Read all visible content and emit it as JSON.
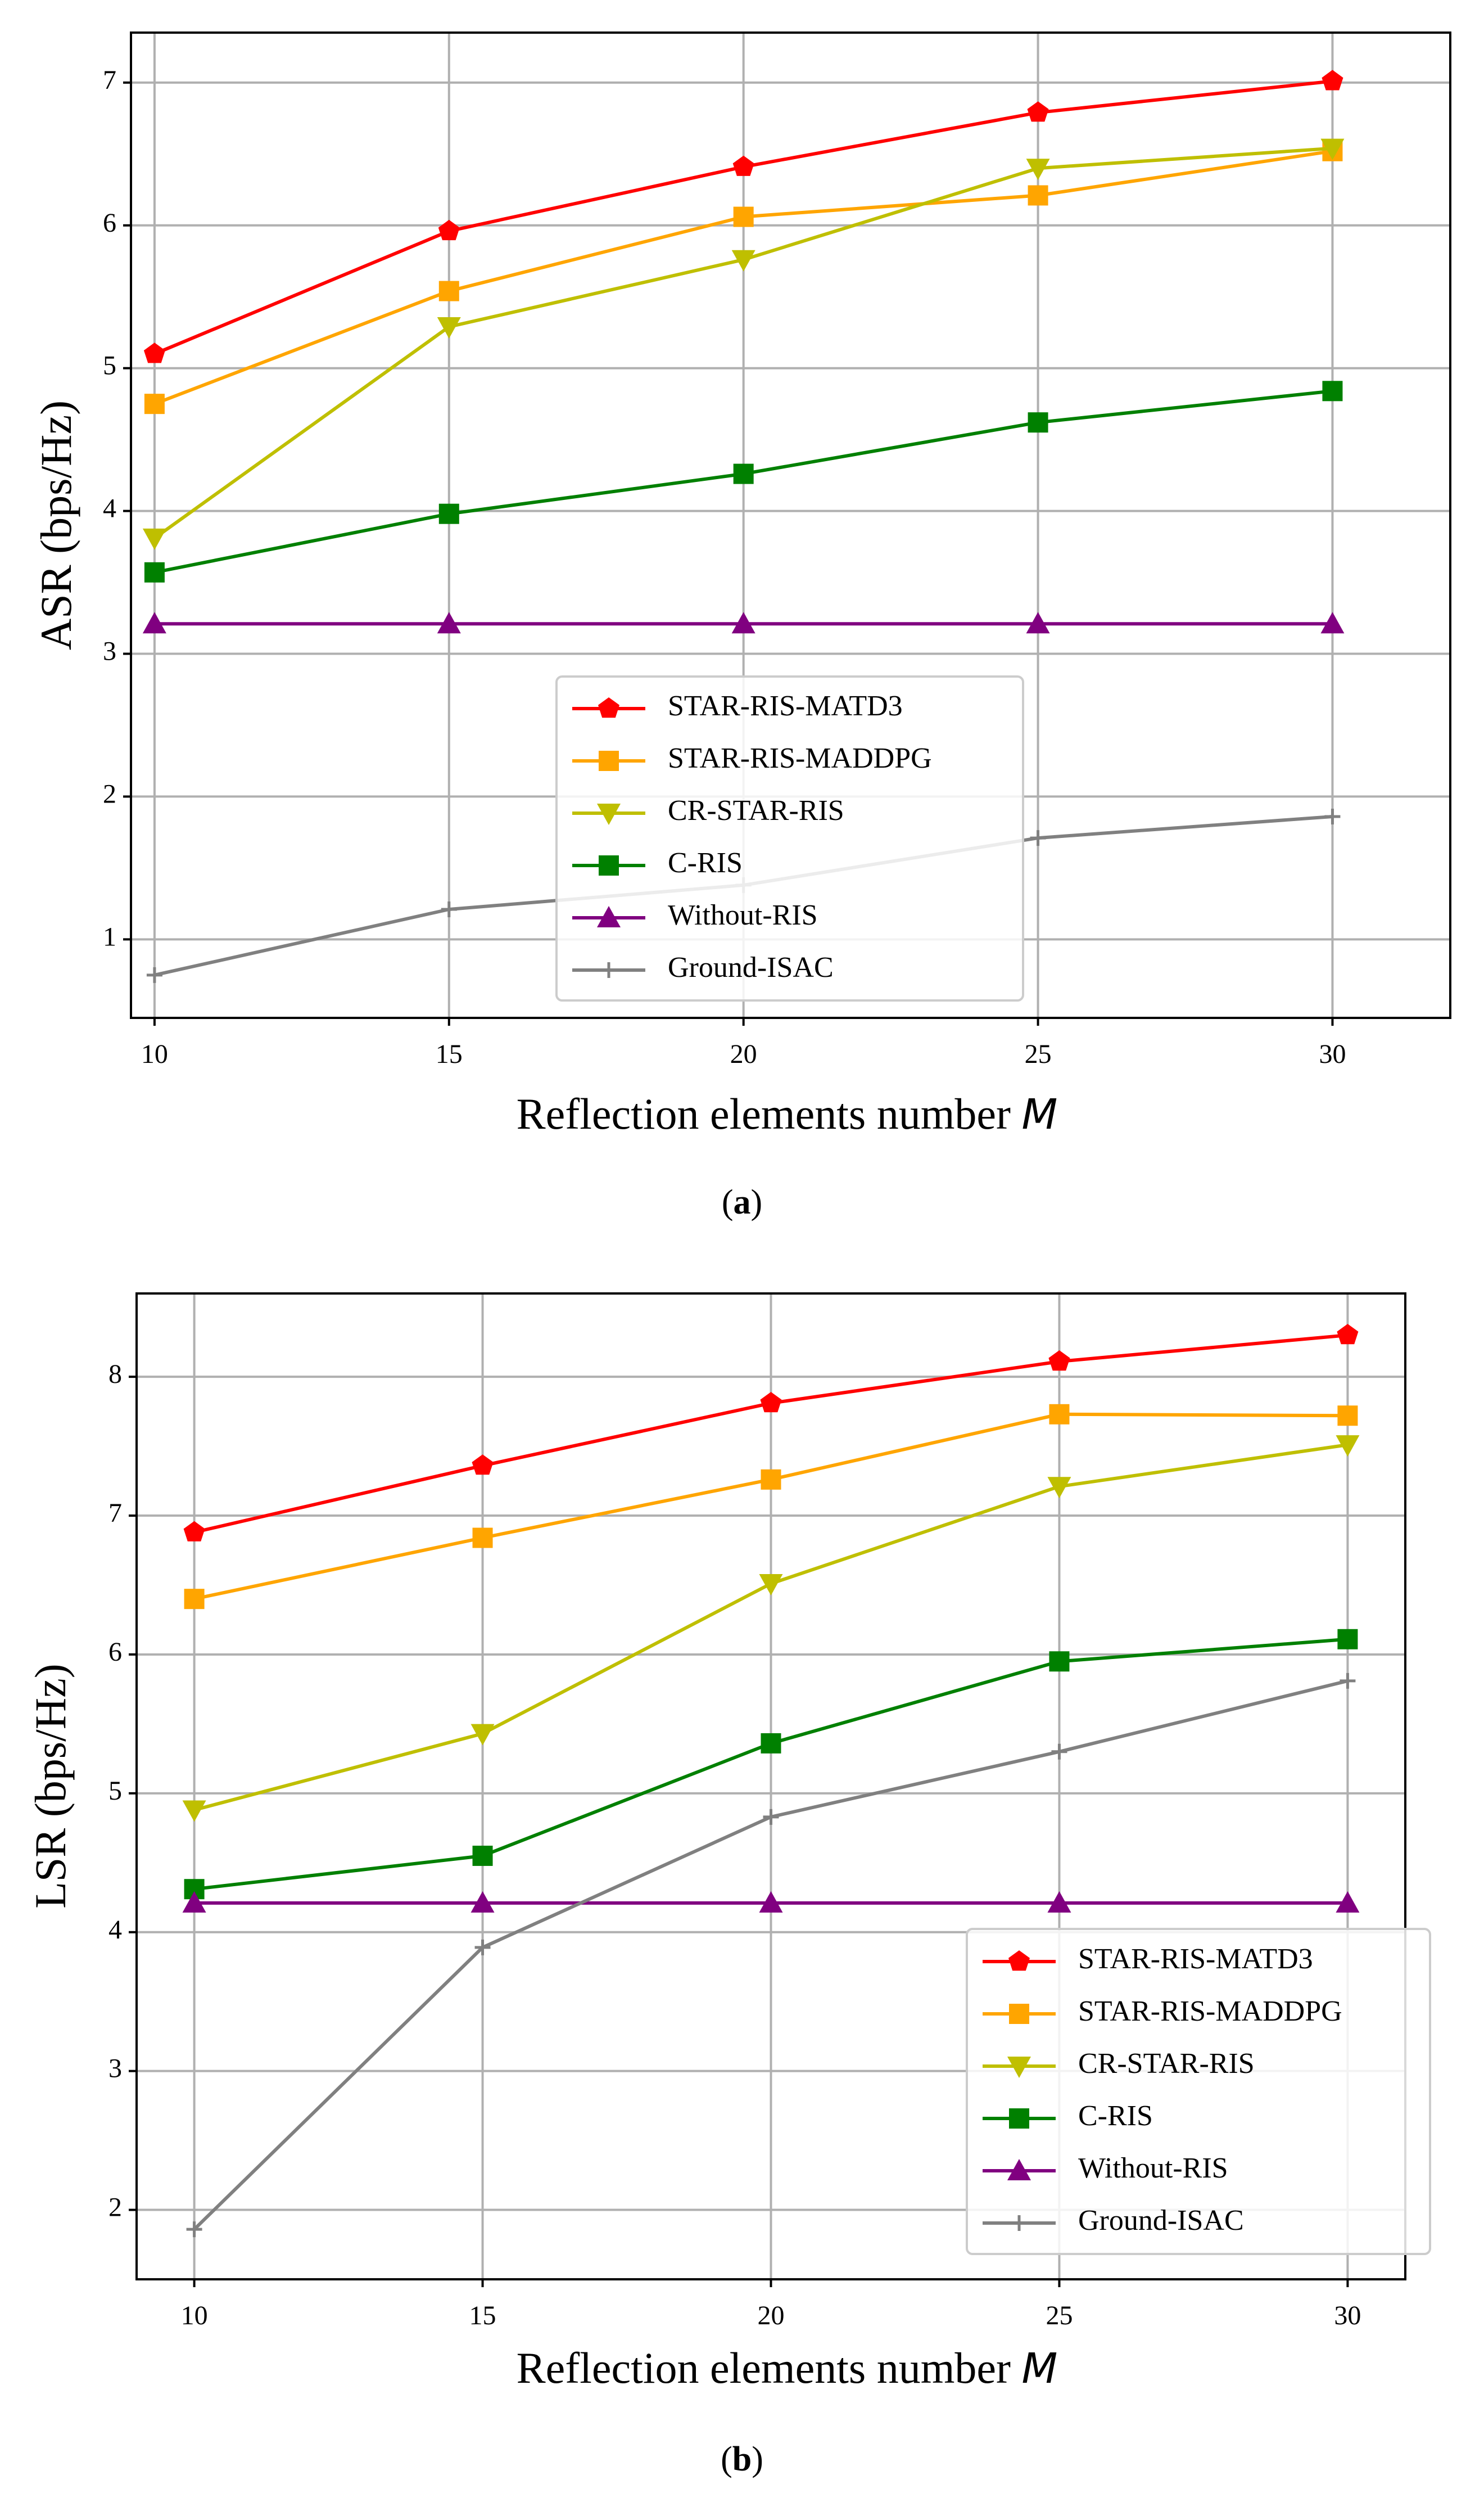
{
  "chart_data": [
    {
      "type": "line",
      "panel": "a",
      "caption_open": "(",
      "caption_letter": "a",
      "caption_close": ")",
      "xlabel": "Reflection elements number ",
      "xvar": "M",
      "ylabel": "ASR (bps/Hz)",
      "x": [
        10,
        15,
        20,
        25,
        30
      ],
      "xticks": [
        10,
        15,
        20,
        25,
        30
      ],
      "yticks": [
        1,
        2,
        3,
        4,
        5,
        6,
        7
      ],
      "xlim": [
        9.6,
        32.0
      ],
      "ylim": [
        0.45,
        7.35
      ],
      "grid": true,
      "legend_position": "lower-center",
      "series": [
        {
          "name": "STAR-RIS-MATD3",
          "color": "#ff0000",
          "marker": "pentagon",
          "values": [
            5.1,
            5.96,
            6.41,
            6.79,
            7.01
          ]
        },
        {
          "name": "STAR-RIS-MADDPG",
          "color": "#ffa500",
          "marker": "square",
          "values": [
            4.75,
            5.54,
            6.06,
            6.21,
            6.52
          ]
        },
        {
          "name": "CR-STAR-RIS",
          "color": "#bfbf00",
          "marker": "triangle-down",
          "values": [
            3.81,
            5.29,
            5.76,
            6.4,
            6.54
          ]
        },
        {
          "name": "C-RIS",
          "color": "#008000",
          "marker": "square",
          "values": [
            3.57,
            3.98,
            4.26,
            4.62,
            4.84
          ]
        },
        {
          "name": "Without-RIS",
          "color": "#800080",
          "marker": "triangle-up",
          "values": [
            3.21,
            3.21,
            3.21,
            3.21,
            3.21
          ]
        },
        {
          "name": "Ground-ISAC",
          "color": "#808080",
          "marker": "plus",
          "values": [
            0.75,
            1.21,
            1.38,
            1.71,
            1.86
          ]
        }
      ]
    },
    {
      "type": "line",
      "panel": "b",
      "caption_open": "(",
      "caption_letter": "b",
      "caption_close": ")",
      "xlabel": "Reflection elements number ",
      "xvar": "M",
      "ylabel": "LSR (bps/Hz)",
      "x": [
        10,
        15,
        20,
        25,
        30
      ],
      "xticks": [
        10,
        15,
        20,
        25,
        30
      ],
      "yticks": [
        2,
        3,
        4,
        5,
        6,
        7,
        8
      ],
      "xlim": [
        9.0,
        31.0
      ],
      "ylim": [
        1.5,
        8.6
      ],
      "grid": true,
      "legend_position": "lower-right",
      "series": [
        {
          "name": "STAR-RIS-MATD3",
          "color": "#ff0000",
          "marker": "pentagon",
          "values": [
            6.88,
            7.36,
            7.81,
            8.11,
            8.3
          ]
        },
        {
          "name": "STAR-RIS-MADDPG",
          "color": "#ffa500",
          "marker": "square",
          "values": [
            6.4,
            6.84,
            7.26,
            7.73,
            7.72
          ]
        },
        {
          "name": "CR-STAR-RIS",
          "color": "#bfbf00",
          "marker": "triangle-down",
          "values": [
            4.88,
            5.43,
            6.51,
            7.21,
            7.51
          ]
        },
        {
          "name": "C-RIS",
          "color": "#008000",
          "marker": "square",
          "values": [
            4.31,
            4.55,
            5.36,
            5.95,
            6.11
          ]
        },
        {
          "name": "Without-RIS",
          "color": "#800080",
          "marker": "triangle-up",
          "values": [
            4.21,
            4.21,
            4.21,
            4.21,
            4.21
          ]
        },
        {
          "name": "Ground-ISAC",
          "color": "#808080",
          "marker": "plus",
          "values": [
            1.86,
            3.89,
            4.83,
            5.3,
            5.81
          ]
        }
      ]
    }
  ]
}
